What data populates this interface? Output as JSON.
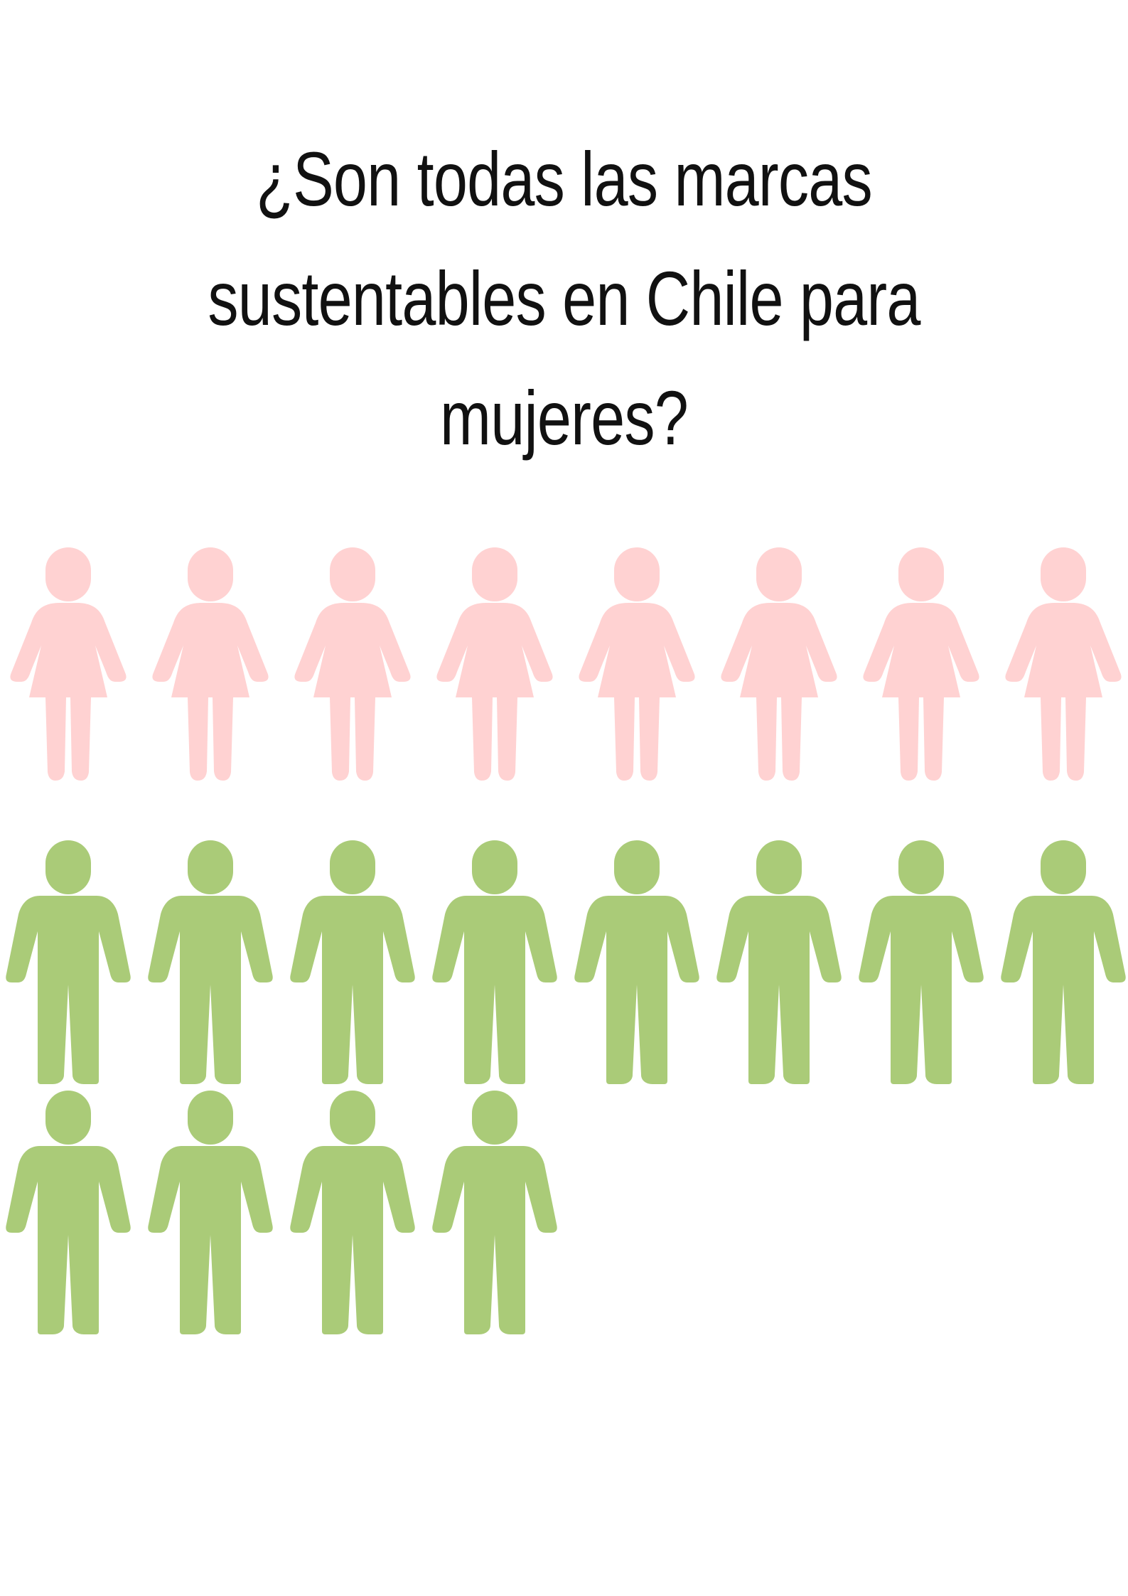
{
  "title_lines": [
    "¿Son todas las marcas",
    "sustentables en Chile para",
    "mujeres?"
  ],
  "chart_data": {
    "type": "pictogram",
    "title": "¿Son todas las marcas sustentables en Chile para mujeres?",
    "icons_per_row": 8,
    "series": [
      {
        "icon": "woman-icon",
        "color": "#ffd2d2",
        "count": 8
      },
      {
        "icon": "man-icon",
        "color": "#aacb78",
        "count": 12
      }
    ]
  }
}
